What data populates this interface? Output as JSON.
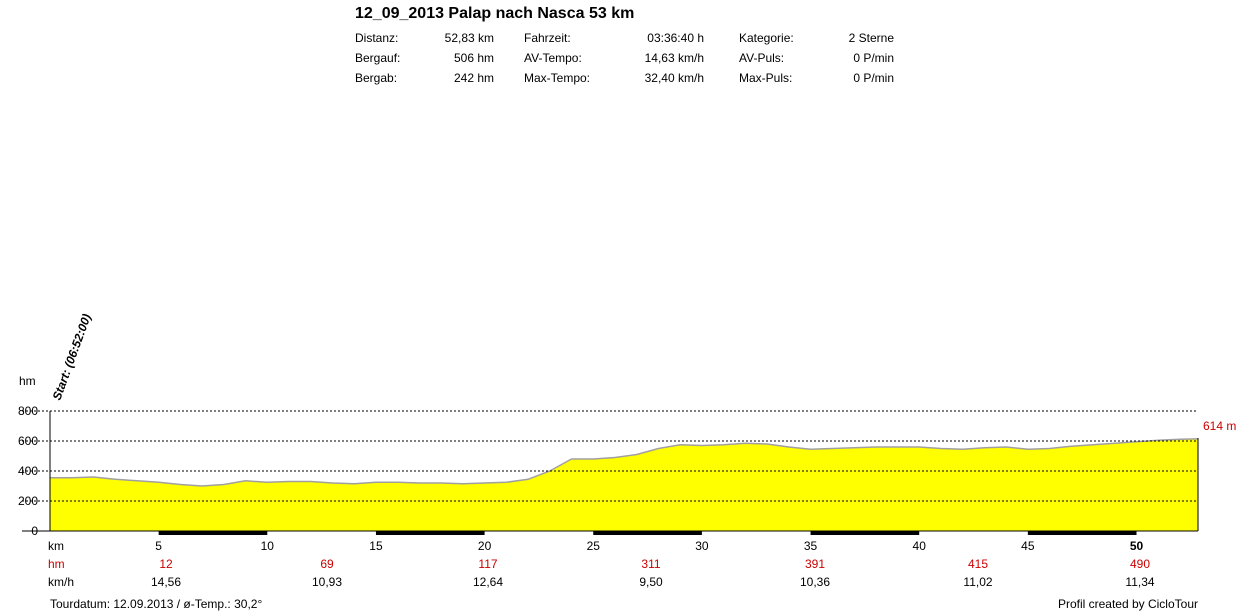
{
  "header": {
    "title": "12_09_2013 Palap nach Nasca 53 km",
    "stats": [
      [
        {
          "label": "Distanz:",
          "value": "52,83 km"
        },
        {
          "label": "Fahrzeit:",
          "value": "03:36:40 h"
        },
        {
          "label": "Kategorie:",
          "value": "2 Sterne"
        }
      ],
      [
        {
          "label": "Bergauf:",
          "value": "506 hm"
        },
        {
          "label": "AV-Tempo:",
          "value": "14,63 km/h"
        },
        {
          "label": "AV-Puls:",
          "value": "0 P/min"
        }
      ],
      [
        {
          "label": "Bergab:",
          "value": "242 hm"
        },
        {
          "label": "Max-Tempo:",
          "value": "32,40 km/h"
        },
        {
          "label": "Max-Puls:",
          "value": "0 P/min"
        }
      ]
    ]
  },
  "chart_data": {
    "type": "area",
    "title": "12_09_2013 Palap nach Nasca 53 km",
    "ylabel": "hm",
    "xlabel": "km",
    "ylim": [
      0,
      800
    ],
    "xlim": [
      0,
      52.83
    ],
    "y_ticks": [
      "0",
      "200",
      "400",
      "600",
      "800"
    ],
    "x_ticks": [
      5,
      10,
      15,
      20,
      25,
      30,
      35,
      40,
      45,
      50
    ],
    "grid": "horizontal dashed",
    "fill_color": "#ffff00",
    "line_color": "#a0a0a0",
    "start_label": "Start: (06:52:00)",
    "end_label": "614 m",
    "profile": {
      "x": [
        0,
        1,
        2,
        3,
        4,
        5,
        6,
        7,
        8,
        9,
        10,
        11,
        12,
        13,
        14,
        15,
        16,
        17,
        18,
        19,
        20,
        21,
        22,
        23,
        24,
        25,
        26,
        27,
        28,
        29,
        30,
        31,
        32,
        33,
        34,
        35,
        36,
        37,
        38,
        39,
        40,
        41,
        42,
        43,
        44,
        45,
        46,
        47,
        48,
        49,
        50,
        51,
        52,
        52.83
      ],
      "y": [
        355,
        355,
        360,
        345,
        335,
        325,
        310,
        300,
        310,
        335,
        325,
        330,
        330,
        320,
        315,
        325,
        325,
        320,
        320,
        315,
        320,
        325,
        345,
        400,
        480,
        480,
        490,
        510,
        550,
        575,
        570,
        575,
        585,
        580,
        560,
        545,
        550,
        555,
        560,
        560,
        560,
        550,
        545,
        555,
        560,
        545,
        550,
        565,
        575,
        585,
        595,
        605,
        612,
        614
      ]
    },
    "hm_row": {
      "label": "hm",
      "color": "#cc0000",
      "values": [
        {
          "x": 0,
          "text": ""
        },
        {
          "x": 0,
          "text": ""
        }
      ]
    },
    "speed_row": {
      "label": "km/h"
    },
    "segments": [
      {
        "x": 0,
        "hm": "12",
        "speed": "14,56"
      },
      {
        "x": 0,
        "hm": "69",
        "speed": "10,93"
      },
      {
        "x": 0,
        "hm": "117",
        "speed": "12,64"
      },
      {
        "x": 0,
        "hm": "311",
        "speed": "9,50"
      },
      {
        "x": 0,
        "hm": "391",
        "speed": "10,36"
      },
      {
        "x": 0,
        "hm": "415",
        "speed": "11,02"
      },
      {
        "x": 0,
        "hm": "490",
        "speed": "11,34"
      }
    ]
  },
  "footer": {
    "left": "Tourdatum: 12.09.2013  /  ø-Temp.: 30,2°",
    "right": "Profil created by CicloTour"
  }
}
